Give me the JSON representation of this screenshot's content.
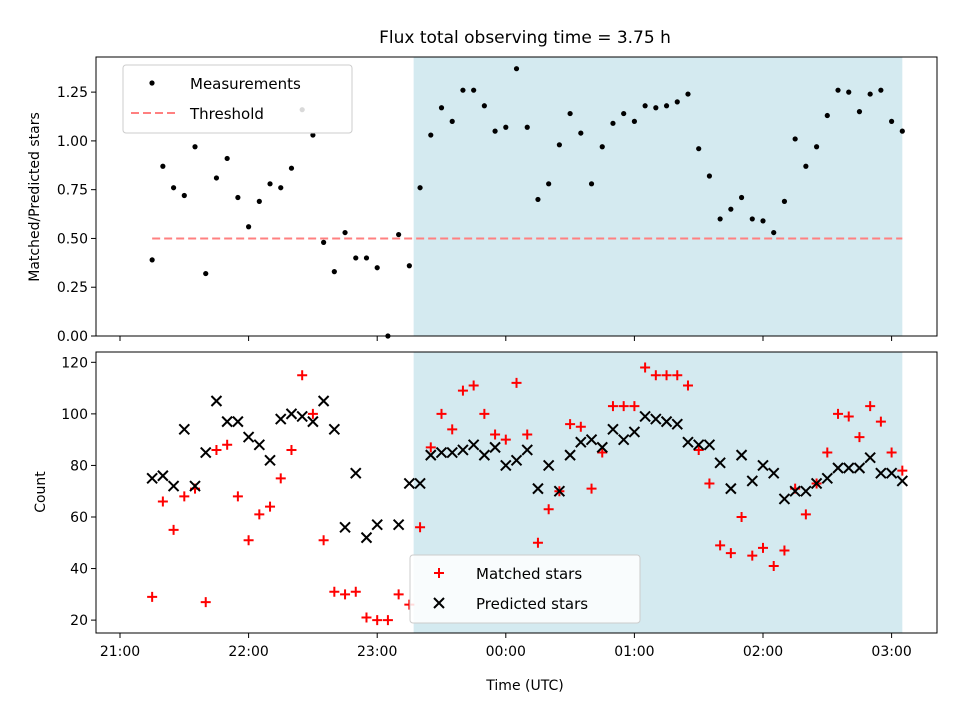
{
  "title": "Flux total observing time = 3.75 h",
  "colors": {
    "highlight": "#d4eaf0",
    "threshold": "#ff8080",
    "measurement": "#000000",
    "matched": "#ff0000",
    "predicted": "#000000"
  },
  "chart_data": [
    {
      "type": "scatter",
      "ylabel": "Matched/Predicted stars",
      "ylim": [
        0,
        1.43
      ],
      "yticks": [
        0.0,
        0.25,
        0.5,
        0.75,
        1.0,
        1.25
      ],
      "ytick_labels": [
        "0.00",
        "0.25",
        "0.50",
        "0.75",
        "1.00",
        "1.25"
      ],
      "legend": [
        "Measurements",
        "Threshold"
      ],
      "legend_position": "upper-left",
      "threshold": {
        "y": 0.5,
        "x_start": "21:15",
        "x_end": "03:05"
      },
      "highlight_span": {
        "x_start": "23:17",
        "x_end": "03:05"
      },
      "series": [
        {
          "name": "Measurements",
          "marker": "dot",
          "x": [
            "21:15",
            "21:20",
            "21:25",
            "21:30",
            "21:35",
            "21:40",
            "21:45",
            "21:50",
            "21:55",
            "22:00",
            "22:05",
            "22:10",
            "22:15",
            "22:20",
            "22:25",
            "22:30",
            "22:35",
            "22:40",
            "22:45",
            "22:50",
            "22:55",
            "23:00",
            "23:05",
            "23:10",
            "23:15",
            "23:20",
            "23:25",
            "23:30",
            "23:35",
            "23:40",
            "23:45",
            "23:50",
            "23:55",
            "00:00",
            "00:05",
            "00:10",
            "00:15",
            "00:20",
            "00:25",
            "00:30",
            "00:35",
            "00:40",
            "00:45",
            "00:50",
            "00:55",
            "01:00",
            "01:05",
            "01:10",
            "01:15",
            "01:20",
            "01:25",
            "01:30",
            "01:35",
            "01:40",
            "01:45",
            "01:50",
            "01:55",
            "02:00",
            "02:05",
            "02:10",
            "02:15",
            "02:20",
            "02:25",
            "02:30",
            "02:35",
            "02:40",
            "02:45",
            "02:50",
            "02:55",
            "03:00",
            "03:05"
          ],
          "y": [
            0.39,
            0.87,
            0.76,
            0.72,
            0.97,
            0.32,
            0.81,
            0.91,
            0.71,
            0.56,
            0.69,
            0.78,
            0.76,
            0.86,
            1.16,
            1.03,
            0.48,
            0.33,
            0.53,
            0.4,
            0.4,
            0.35,
            0.0,
            0.52,
            0.36,
            0.76,
            1.03,
            1.17,
            1.1,
            1.26,
            1.26,
            1.18,
            1.05,
            1.07,
            1.37,
            1.07,
            0.7,
            0.78,
            0.98,
            1.14,
            1.04,
            0.78,
            0.97,
            1.09,
            1.14,
            1.1,
            1.18,
            1.17,
            1.18,
            1.2,
            1.24,
            0.96,
            0.82,
            0.6,
            0.65,
            0.71,
            0.6,
            0.59,
            0.53,
            0.69,
            1.01,
            0.87,
            0.97,
            1.13,
            1.26,
            1.25,
            1.15,
            1.24,
            1.26,
            1.1,
            1.05
          ]
        }
      ]
    },
    {
      "type": "scatter",
      "xlabel": "Time (UTC)",
      "ylabel": "Count",
      "ylim": [
        15,
        124
      ],
      "yticks": [
        20,
        40,
        60,
        80,
        100,
        120
      ],
      "ytick_labels": [
        "20",
        "40",
        "60",
        "80",
        "100",
        "120"
      ],
      "xticks": [
        "21:00",
        "22:00",
        "23:00",
        "00:00",
        "01:00",
        "02:00",
        "03:00"
      ],
      "legend": [
        "Matched stars",
        "Predicted stars"
      ],
      "legend_position": "lower-center",
      "highlight_span": {
        "x_start": "23:17",
        "x_end": "03:05"
      },
      "series": [
        {
          "name": "Matched stars",
          "marker": "plus",
          "x": [
            "21:15",
            "21:20",
            "21:25",
            "21:30",
            "21:35",
            "21:40",
            "21:45",
            "21:50",
            "21:55",
            "22:00",
            "22:05",
            "22:10",
            "22:15",
            "22:20",
            "22:25",
            "22:30",
            "22:35",
            "22:40",
            "22:45",
            "22:50",
            "22:55",
            "23:00",
            "23:05",
            "23:10",
            "23:15",
            "23:20",
            "23:25",
            "23:30",
            "23:35",
            "23:40",
            "23:45",
            "23:50",
            "23:55",
            "00:00",
            "00:05",
            "00:10",
            "00:15",
            "00:20",
            "00:25",
            "00:30",
            "00:35",
            "00:40",
            "00:45",
            "00:50",
            "00:55",
            "01:00",
            "01:05",
            "01:10",
            "01:15",
            "01:20",
            "01:25",
            "01:30",
            "01:35",
            "01:40",
            "01:45",
            "01:50",
            "01:55",
            "02:00",
            "02:05",
            "02:10",
            "02:15",
            "02:20",
            "02:25",
            "02:30",
            "02:35",
            "02:40",
            "02:45",
            "02:50",
            "02:55",
            "03:00",
            "03:05"
          ],
          "y": [
            29,
            66,
            55,
            68,
            71,
            27,
            86,
            88,
            68,
            51,
            61,
            64,
            75,
            86,
            115,
            100,
            51,
            31,
            30,
            31,
            21,
            20,
            20,
            30,
            26,
            56,
            87,
            100,
            94,
            109,
            111,
            100,
            92,
            90,
            112,
            92,
            50,
            63,
            70,
            96,
            95,
            71,
            85,
            103,
            103,
            103,
            118,
            115,
            115,
            115,
            111,
            86,
            73,
            49,
            46,
            60,
            45,
            48,
            41,
            47,
            71,
            61,
            73,
            85,
            100,
            99,
            91,
            103,
            97,
            85,
            78
          ]
        },
        {
          "name": "Predicted stars",
          "marker": "x",
          "x": [
            "21:15",
            "21:20",
            "21:25",
            "21:30",
            "21:35",
            "21:40",
            "21:45",
            "21:50",
            "21:55",
            "22:00",
            "22:05",
            "22:10",
            "22:15",
            "22:20",
            "22:25",
            "22:30",
            "22:35",
            "22:40",
            "22:45",
            "22:50",
            "22:55",
            "23:00",
            "23:10",
            "23:15",
            "23:20",
            "23:25",
            "23:30",
            "23:35",
            "23:40",
            "23:45",
            "23:50",
            "23:55",
            "00:00",
            "00:05",
            "00:10",
            "00:15",
            "00:20",
            "00:25",
            "00:30",
            "00:35",
            "00:40",
            "00:45",
            "00:50",
            "00:55",
            "01:00",
            "01:05",
            "01:10",
            "01:15",
            "01:20",
            "01:25",
            "01:30",
            "01:35",
            "01:40",
            "01:45",
            "01:50",
            "01:55",
            "02:00",
            "02:05",
            "02:10",
            "02:15",
            "02:20",
            "02:25",
            "02:30",
            "02:35",
            "02:40",
            "02:45",
            "02:50",
            "02:55",
            "03:00",
            "03:05"
          ],
          "y": [
            75,
            76,
            72,
            94,
            72,
            85,
            105,
            97,
            97,
            91,
            88,
            82,
            98,
            100,
            99,
            97,
            105,
            94,
            56,
            77,
            52,
            57,
            57,
            73,
            73,
            84,
            85,
            85,
            86,
            88,
            84,
            87,
            80,
            82,
            86,
            71,
            80,
            70,
            84,
            89,
            90,
            87,
            94,
            90,
            93,
            99,
            98,
            97,
            96,
            89,
            88,
            88,
            81,
            71,
            84,
            74,
            80,
            77,
            67,
            70,
            70,
            73,
            75,
            79,
            79,
            79,
            83,
            77,
            77,
            74
          ]
        }
      ]
    }
  ]
}
